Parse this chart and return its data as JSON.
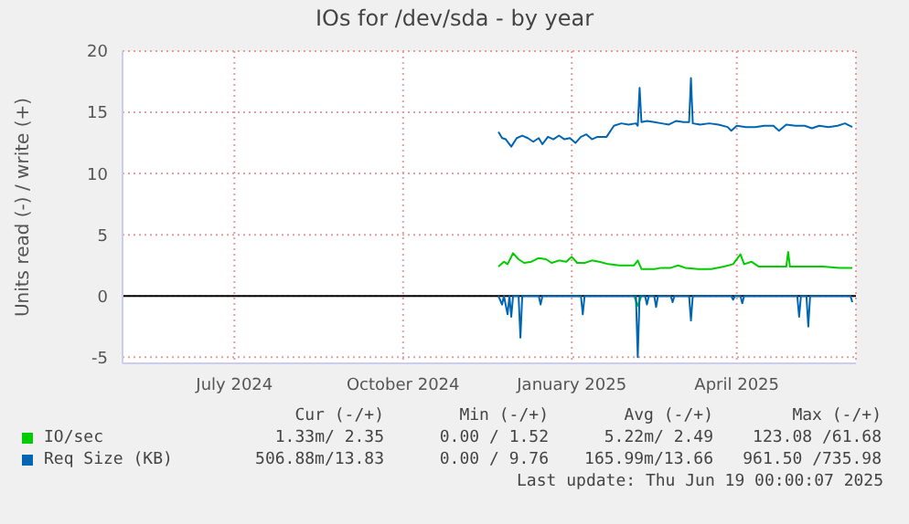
{
  "chart_data": {
    "type": "line",
    "title": "IOs for /dev/sda - by year",
    "ylabel": "Units read (-) / write (+)",
    "xlim": [
      "2024-05-15",
      "2025-06-19"
    ],
    "xticks": [
      {
        "value": "2024-07-15",
        "label": "July 2024"
      },
      {
        "value": "2024-10-15",
        "label": "October 2024"
      },
      {
        "value": "2025-01-15",
        "label": "January 2025"
      },
      {
        "value": "2025-04-15",
        "label": "April 2025"
      }
    ],
    "ylim": [
      -5.5,
      20
    ],
    "yticks": [
      -5,
      0,
      5,
      10,
      15,
      20
    ],
    "grid": true,
    "legend": "bottom",
    "ref_lines": [
      {
        "axis": "y",
        "value": 0,
        "color": "#000000"
      }
    ],
    "series": [
      {
        "name": "IO/sec",
        "color": "#00cc00",
        "x": [
          "2024-12-06",
          "2024-12-09",
          "2024-12-11",
          "2024-12-14",
          "2024-12-17",
          "2024-12-20",
          "2024-12-24",
          "2024-12-28",
          "2025-01-01",
          "2025-01-04",
          "2025-01-08",
          "2025-01-12",
          "2025-01-15",
          "2025-01-18",
          "2025-01-22",
          "2025-01-26",
          "2025-01-30",
          "2025-02-04",
          "2025-02-10",
          "2025-02-18",
          "2025-02-20",
          "2025-02-22",
          "2025-03-01",
          "2025-03-05",
          "2025-03-10",
          "2025-03-14",
          "2025-03-18",
          "2025-03-25",
          "2025-04-01",
          "2025-04-08",
          "2025-04-13",
          "2025-04-17",
          "2025-04-19",
          "2025-04-23",
          "2025-04-27",
          "2025-05-05",
          "2025-05-12",
          "2025-05-13",
          "2025-05-14",
          "2025-05-25",
          "2025-06-01",
          "2025-06-10",
          "2025-06-17"
        ],
        "values": [
          2.4,
          2.8,
          2.6,
          3.5,
          3.0,
          2.7,
          2.8,
          3.1,
          3.0,
          2.7,
          2.9,
          2.8,
          3.2,
          2.7,
          2.7,
          2.9,
          2.8,
          2.6,
          2.5,
          2.5,
          2.9,
          2.2,
          2.2,
          2.3,
          2.3,
          2.5,
          2.3,
          2.2,
          2.2,
          2.4,
          2.6,
          3.4,
          2.6,
          2.8,
          2.4,
          2.4,
          2.4,
          3.6,
          2.4,
          2.4,
          2.4,
          2.3,
          2.3
        ]
      },
      {
        "color": "#00cc00",
        "x": [
          "2025-02-18",
          "2025-02-20",
          "2025-02-22"
        ],
        "values": [
          0,
          -0.8,
          0
        ]
      },
      {
        "name": "Req Size (KB)",
        "color": "#0066b3",
        "x": [
          "2024-12-06",
          "2024-12-08",
          "2024-12-10",
          "2024-12-13",
          "2024-12-16",
          "2024-12-19",
          "2024-12-22",
          "2024-12-25",
          "2024-12-28",
          "2024-12-30",
          "2025-01-02",
          "2025-01-05",
          "2025-01-08",
          "2025-01-11",
          "2025-01-14",
          "2025-01-17",
          "2025-01-20",
          "2025-01-23",
          "2025-01-26",
          "2025-01-29",
          "2025-02-03",
          "2025-02-07",
          "2025-02-11",
          "2025-02-15",
          "2025-02-19",
          "2025-02-20",
          "2025-02-21",
          "2025-02-22",
          "2025-02-25",
          "2025-03-01",
          "2025-03-05",
          "2025-03-09",
          "2025-03-13",
          "2025-03-17",
          "2025-03-20",
          "2025-03-21",
          "2025-03-22",
          "2025-03-26",
          "2025-03-31",
          "2025-04-05",
          "2025-04-10",
          "2025-04-12",
          "2025-04-15",
          "2025-04-20",
          "2025-04-25",
          "2025-04-30",
          "2025-05-05",
          "2025-05-08",
          "2025-05-12",
          "2025-05-17",
          "2025-05-22",
          "2025-05-26",
          "2025-05-30",
          "2025-06-04",
          "2025-06-09",
          "2025-06-13",
          "2025-06-17"
        ],
        "values": [
          13.4,
          12.9,
          12.8,
          12.2,
          12.9,
          13.1,
          12.9,
          12.6,
          12.9,
          12.4,
          13.0,
          12.8,
          13.1,
          12.8,
          12.9,
          12.5,
          13.0,
          13.2,
          12.8,
          13.0,
          13.0,
          13.9,
          14.1,
          14.0,
          14.1,
          13.9,
          17.0,
          14.2,
          14.3,
          14.2,
          14.1,
          14.0,
          14.3,
          14.2,
          14.2,
          17.8,
          14.1,
          14.0,
          14.1,
          14.0,
          13.8,
          13.5,
          13.9,
          13.8,
          13.8,
          13.9,
          13.9,
          13.5,
          14.0,
          13.9,
          13.9,
          13.7,
          13.9,
          13.8,
          13.9,
          14.1,
          13.8
        ]
      },
      {
        "color": "#0066b3",
        "x": [
          "2024-12-06",
          "2024-12-08",
          "2024-12-09",
          "2024-12-11",
          "2024-12-12",
          "2024-12-13",
          "2024-12-14",
          "2024-12-17",
          "2024-12-18",
          "2024-12-19",
          "2024-12-28",
          "2024-12-29",
          "2024-12-30",
          "2025-01-20",
          "2025-01-21",
          "2025-01-22",
          "2025-02-19",
          "2025-02-20",
          "2025-02-21",
          "2025-02-24",
          "2025-02-25",
          "2025-02-26",
          "2025-03-01",
          "2025-03-02",
          "2025-03-03",
          "2025-03-10",
          "2025-03-11",
          "2025-03-12",
          "2025-03-20",
          "2025-03-21",
          "2025-03-22",
          "2025-04-12",
          "2025-04-13",
          "2025-04-14",
          "2025-04-17",
          "2025-04-18",
          "2025-04-19",
          "2025-05-18",
          "2025-05-19",
          "2025-05-20",
          "2025-05-23",
          "2025-05-24",
          "2025-05-25",
          "2025-06-16",
          "2025-06-17"
        ],
        "values": [
          0,
          -0.7,
          0,
          -1.5,
          0,
          -1.7,
          0,
          0,
          -3.4,
          0,
          0,
          -0.7,
          0,
          0,
          -1.5,
          0,
          0,
          -5.0,
          0,
          0,
          -0.7,
          0,
          0,
          -0.9,
          0,
          0,
          -0.5,
          0,
          0,
          -2.0,
          0,
          0,
          -0.3,
          0,
          0,
          -0.6,
          0,
          0,
          -1.7,
          0,
          0,
          -2.5,
          0,
          0,
          -0.5
        ]
      }
    ],
    "annotations": [
      "Cur (-/+)",
      "Min (-/+)",
      "Avg (-/+)",
      "Max (-/+)",
      "1.33m/ 2.35",
      "0.00 / 1.52",
      "5.22m/ 2.49",
      "123.08 /61.68",
      "506.88m/13.83",
      "0.00 / 9.76",
      "165.99m/13.66",
      "961.50 /735.98",
      "Last update: Thu Jun 19 00:00:07 2025"
    ]
  }
}
